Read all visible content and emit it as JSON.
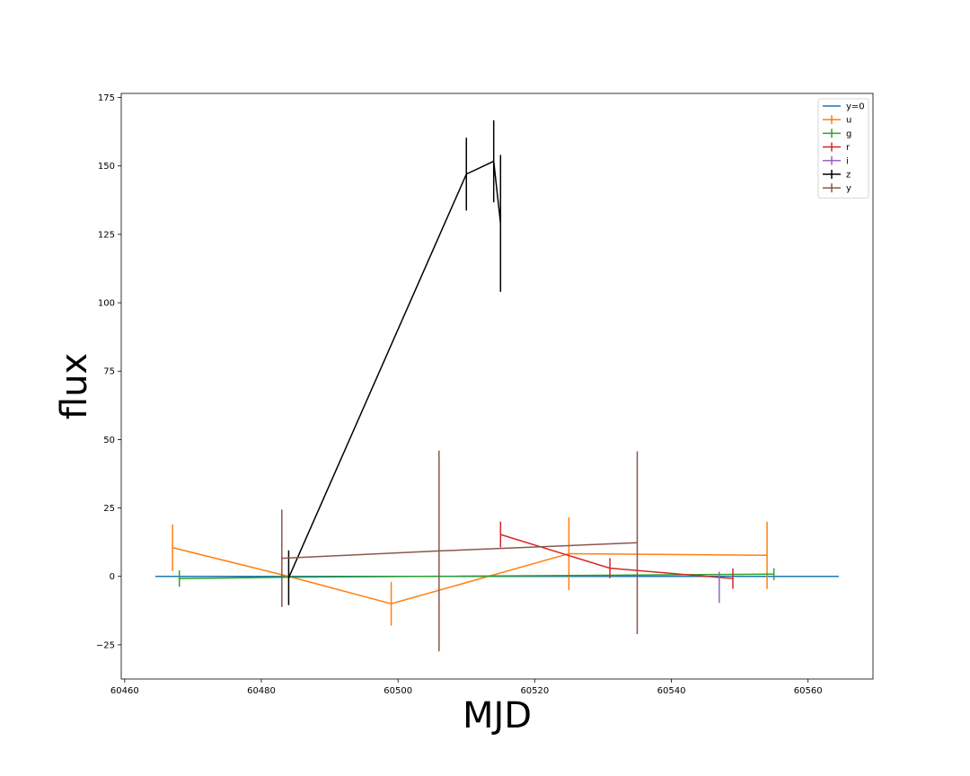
{
  "chart_data": {
    "type": "line",
    "title": "",
    "xlabel": "MJD",
    "ylabel": "flux",
    "xlim": [
      60459.5,
      60569.5
    ],
    "ylim": [
      -37.5,
      176.5
    ],
    "xticks": [
      60460,
      60480,
      60500,
      60520,
      60540,
      60560
    ],
    "yticks": [
      -25,
      0,
      25,
      50,
      75,
      100,
      125,
      150,
      175
    ],
    "grid": false,
    "legend_position": "top-right",
    "reference_line": {
      "name": "y=0",
      "color": "#1f77b4",
      "x": [
        60464.5,
        60564.5
      ],
      "y": [
        0,
        0
      ]
    },
    "series": [
      {
        "name": "u",
        "color": "#ff7f0e",
        "points": [
          {
            "x": 60467,
            "y": 10.5,
            "err": 8.5
          },
          {
            "x": 60484,
            "y": 0,
            "err": 0
          },
          {
            "x": 60499,
            "y": -10,
            "err": 8
          },
          {
            "x": 60525,
            "y": 8.3,
            "err": 13.3
          },
          {
            "x": 60554,
            "y": 7.7,
            "err": 12.3
          }
        ]
      },
      {
        "name": "g",
        "color": "#2ca02c",
        "points": [
          {
            "x": 60468,
            "y": -0.8,
            "err": 3
          },
          {
            "x": 60484,
            "y": -0.3,
            "err": 0
          },
          {
            "x": 60555,
            "y": 0.8,
            "err": 2.2
          }
        ]
      },
      {
        "name": "r",
        "color": "#d62728",
        "points": [
          {
            "x": 60515,
            "y": 15.3,
            "err": 4.7
          },
          {
            "x": 60531,
            "y": 3,
            "err": 3.7
          },
          {
            "x": 60549,
            "y": -0.8,
            "err": 3.7
          }
        ]
      },
      {
        "name": "i",
        "color": "#9467bd",
        "points": [
          {
            "x": 60547,
            "y": -4,
            "err": 5.7
          }
        ]
      },
      {
        "name": "z",
        "color": "#000000",
        "points": [
          {
            "x": 60484,
            "y": -0.5,
            "err": 10
          },
          {
            "x": 60510,
            "y": 147,
            "err": 13.3
          },
          {
            "x": 60514,
            "y": 151.7,
            "err": 15
          },
          {
            "x": 60515,
            "y": 129,
            "err": 25
          }
        ]
      },
      {
        "name": "y",
        "color": "#8c564b",
        "points": [
          {
            "x": 60483,
            "y": 6.6,
            "err": 17.8
          },
          {
            "x": 60506,
            "y": 9.3,
            "err": 36.7
          },
          {
            "x": 60535,
            "y": 12.3,
            "err": 33.4
          }
        ]
      }
    ]
  }
}
